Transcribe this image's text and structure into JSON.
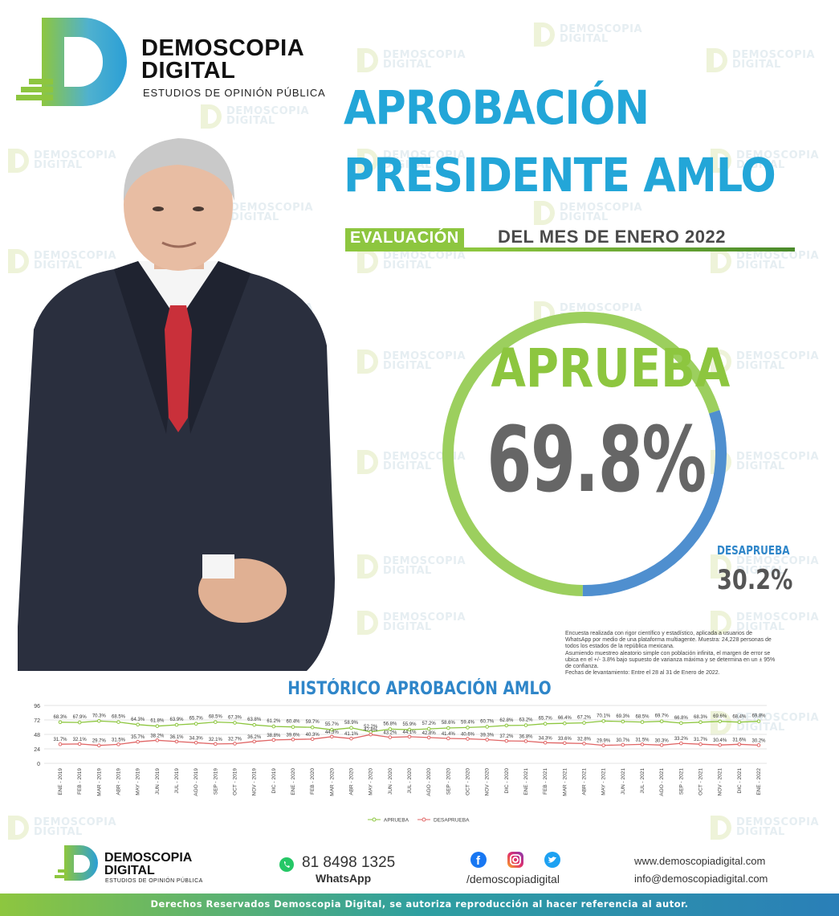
{
  "brand": {
    "name_line1": "DEMOSCOPIA",
    "name_line2": "DIGITAL",
    "tagline": "ESTUDIOS DE OPINIÓN PÚBLICA",
    "colors": {
      "green": "#8dc63f",
      "blue": "#23a6d8",
      "dark_blue": "#2f86c9",
      "gray": "#666666"
    }
  },
  "headline": {
    "line1": "APROBACIÓN",
    "line2": "PRESIDENTE AMLO",
    "badge": "EVALUACIÓN",
    "subtitle": "DEL MES DE ENERO 2022"
  },
  "result": {
    "approve_label": "APRUEBA",
    "approve_value": "69.8%",
    "approve_fraction": 0.698,
    "disapprove_label": "DESAPRUEBA",
    "disapprove_value": "30.2%",
    "disapprove_fraction": 0.302
  },
  "methodology": [
    "Encuesta realizada con rigor científico y estadístico, aplicada a usuarios de",
    "WhatsApp por medio de una plataforma multiagente. Muestra: 24,228 personas de",
    "todos los estados de la república mexicana.",
    "Asumiendo muestreo aleatorio simple con población infinita, el margen de error se",
    "ubica en el +/- 3.8% bajo supuesto de varianza máxima y se determina en un ± 95%",
    "de confianza.",
    "Fechas de levantamiento: Entre el 28 al 31 de Enero de 2022."
  ],
  "chart_data": {
    "type": "line",
    "title": "HISTÓRICO APROBACIÓN AMLO",
    "ylim": [
      0,
      96
    ],
    "yticks": [
      0,
      24,
      48,
      72,
      96
    ],
    "grid": true,
    "legend": "bottom-center",
    "categories": [
      "ENE - 2019",
      "FEB - 2019",
      "MAR - 2019",
      "ABR - 2019",
      "MAY - 2019",
      "JUN - 2019",
      "JUL - 2019",
      "AGO - 2019",
      "SEP - 2019",
      "OCT - 2019",
      "NOV - 2019",
      "DIC - 2019",
      "ENE - 2020",
      "FEB - 2020",
      "MAR - 2020",
      "ABR - 2020",
      "MAY - 2020",
      "JUN - 2020",
      "JUL - 2020",
      "AGO - 2020",
      "SEP - 2020",
      "OCT - 2020",
      "NOV - 2020",
      "DIC - 2020",
      "ENE - 2021",
      "FEB - 2021",
      "MAR - 2021",
      "ABR - 2021",
      "MAY - 2021",
      "JUN - 2021",
      "JUL - 2021",
      "AGO - 2021",
      "SEP - 2021",
      "OCT - 2021",
      "NOV - 2021",
      "DIC - 2021",
      "ENE - 2022"
    ],
    "series": [
      {
        "name": "APRUEBA",
        "color": "#8dc63f",
        "values": [
          68.3,
          67.9,
          70.3,
          68.5,
          64.3,
          61.8,
          63.9,
          65.7,
          68.5,
          67.3,
          63.8,
          61.2,
          60.4,
          59.7,
          55.7,
          58.9,
          52.2,
          56.8,
          55.9,
          57.2,
          58.6,
          59.4,
          60.7,
          62.8,
          63.2,
          65.7,
          66.4,
          67.2,
          70.1,
          69.3,
          68.5,
          69.7,
          66.8,
          68.3,
          69.6,
          68.4,
          69.8
        ],
        "labels": [
          "68.3%",
          "67.9%",
          "70.3%",
          "68.5%",
          "64.3%",
          "61.8%",
          "63.9%",
          "65.7%",
          "68.5%",
          "67.3%",
          "63.8%",
          "61.2%",
          "60.4%",
          "59.7%",
          "55.7%",
          "58.9%",
          "52.2%",
          "56.8%",
          "55.9%",
          "57.2%",
          "58.6%",
          "59.4%",
          "60.7%",
          "62.8%",
          "63.2%",
          "65.7%",
          "66.4%",
          "67.2%",
          "70.1%",
          "69.3%",
          "68.5%",
          "69.7%",
          "66.8%",
          "68.3%",
          "69.6%",
          "68.4%",
          "69.8%"
        ]
      },
      {
        "name": "DESAPRUEBA",
        "color": "#e06666",
        "values": [
          31.7,
          32.1,
          29.7,
          31.5,
          35.7,
          38.2,
          36.1,
          34.3,
          32.1,
          32.7,
          36.2,
          38.8,
          39.6,
          40.3,
          44.3,
          41.1,
          47.8,
          43.2,
          44.1,
          42.8,
          41.4,
          40.6,
          39.3,
          37.2,
          36.8,
          34.3,
          33.6,
          32.8,
          29.9,
          30.7,
          31.5,
          30.3,
          33.2,
          31.7,
          30.4,
          31.6,
          30.2
        ],
        "labels": [
          "31.7%",
          "32.1%",
          "29.7%",
          "31.5%",
          "35.7%",
          "38.2%",
          "36.1%",
          "34.3%",
          "32.1%",
          "32.7%",
          "36.2%",
          "38.8%",
          "39.6%",
          "40.3%",
          "44.3%",
          "41.1%",
          "47.8%",
          "43.2%",
          "44.1%",
          "42.8%",
          "41.4%",
          "40.6%",
          "39.3%",
          "37.2%",
          "36.8%",
          "34.3%",
          "33.6%",
          "32.8%",
          "29.9%",
          "30.7%",
          "31.5%",
          "30.3%",
          "33.2%",
          "31.7%",
          "30.4%",
          "31.6%",
          "30.2%"
        ]
      }
    ]
  },
  "footer": {
    "brand_line1": "DEMOSCOPIA",
    "brand_line2": "DIGITAL",
    "brand_tagline": "ESTUDIOS DE OPINIÓN PÚBLICA",
    "phone": "81 8498 1325",
    "phone_label": "WhatsApp",
    "social_handle": "/demoscopiadigital",
    "social_icons": [
      "facebook-icon",
      "instagram-icon",
      "twitter-icon"
    ],
    "website": "www.demoscopiadigital.com",
    "email": "info@demoscopiadigital.com",
    "copyright": "Derechos Reservados Demoscopia Digital, se autoriza reproducción al hacer referencia al autor."
  },
  "watermark": {
    "line1": "DEMOSCOPIA",
    "line2": "DIGITAL"
  }
}
